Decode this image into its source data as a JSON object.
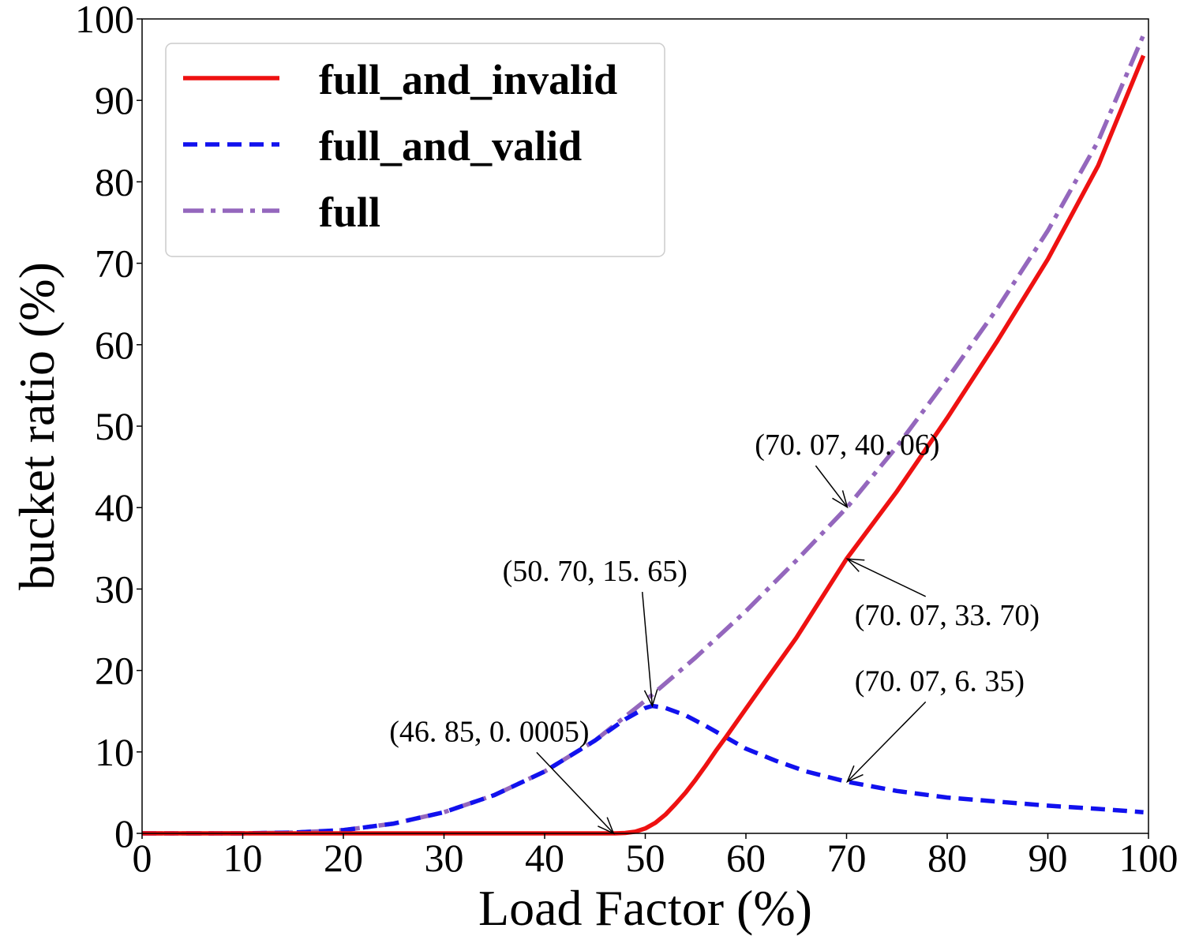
{
  "chart_data": {
    "type": "line",
    "xlabel": "Load Factor (%)",
    "ylabel": "bucket ratio (%)",
    "xlim": [
      0,
      100
    ],
    "ylim": [
      0,
      100
    ],
    "x_ticks": [
      "0",
      "10",
      "20",
      "30",
      "40",
      "50",
      "60",
      "70",
      "80",
      "90",
      "100"
    ],
    "y_ticks": [
      "0",
      "10",
      "20",
      "30",
      "40",
      "50",
      "60",
      "70",
      "80",
      "90",
      "100"
    ],
    "grid": false,
    "legend_position": "top-left",
    "series": [
      {
        "name": "full_and_invalid",
        "color": "#ee1111",
        "style": "solid",
        "x": [
          0,
          10,
          20,
          30,
          40,
          44,
          46,
          47,
          48,
          49,
          50,
          51,
          52,
          53,
          54,
          55,
          56,
          57,
          58,
          60,
          62,
          65,
          70,
          75,
          80,
          85,
          90,
          95,
          99.5
        ],
        "y": [
          0,
          0,
          0,
          0,
          0,
          0,
          0,
          0.001,
          0.05,
          0.2,
          0.6,
          1.3,
          2.3,
          3.6,
          5.0,
          6.6,
          8.3,
          10.1,
          11.8,
          15.3,
          18.8,
          24.0,
          33.7,
          42.0,
          51.0,
          60.5,
          70.5,
          82.0,
          95.5
        ]
      },
      {
        "name": "full_and_valid",
        "color": "#1111ee",
        "style": "dashed",
        "x": [
          0,
          10,
          15,
          20,
          25,
          30,
          35,
          40,
          45,
          48,
          50,
          50.7,
          52,
          54,
          56,
          58,
          60,
          63,
          66,
          70,
          75,
          80,
          85,
          90,
          95,
          99.5
        ],
        "y": [
          0,
          0,
          0.1,
          0.4,
          1.2,
          2.6,
          4.7,
          7.6,
          11.4,
          14.0,
          15.4,
          15.65,
          15.4,
          14.5,
          13.2,
          11.8,
          10.4,
          8.9,
          7.6,
          6.35,
          5.2,
          4.4,
          3.9,
          3.4,
          3.0,
          2.6
        ]
      },
      {
        "name": "full",
        "color": "#9467bd",
        "style": "dashdot",
        "x": [
          0,
          10,
          15,
          20,
          25,
          30,
          35,
          40,
          45,
          50,
          55,
          60,
          65,
          70.07,
          75,
          80,
          85,
          90,
          95,
          99.5
        ],
        "y": [
          0,
          0,
          0.1,
          0.4,
          1.2,
          2.6,
          4.7,
          7.6,
          11.4,
          16.3,
          21.6,
          27.3,
          33.5,
          40.06,
          47.5,
          55.8,
          64.5,
          74.0,
          85.0,
          98.0
        ]
      }
    ],
    "annotations": [
      {
        "text": "(70. 07, 40. 06)",
        "point": [
          70.07,
          40.06
        ],
        "text_at": [
          70.07,
          46.5
        ],
        "anchor": "middle"
      },
      {
        "text": "(70. 07, 33. 70)",
        "point": [
          70.07,
          33.7
        ],
        "text_at": [
          70.8,
          25.6
        ],
        "anchor": "start"
      },
      {
        "text": "(50. 70, 15. 65)",
        "point": [
          50.7,
          15.65
        ],
        "text_at": [
          45.0,
          31.0
        ],
        "anchor": "middle"
      },
      {
        "text": "(70. 07,   6. 35)",
        "point": [
          70.07,
          6.35
        ],
        "text_at": [
          70.8,
          17.5
        ],
        "anchor": "start"
      },
      {
        "text": "(46. 85, 0. 0005)",
        "point": [
          46.85,
          0.0005
        ],
        "text_at": [
          34.5,
          11.3
        ],
        "anchor": "middle"
      }
    ]
  }
}
